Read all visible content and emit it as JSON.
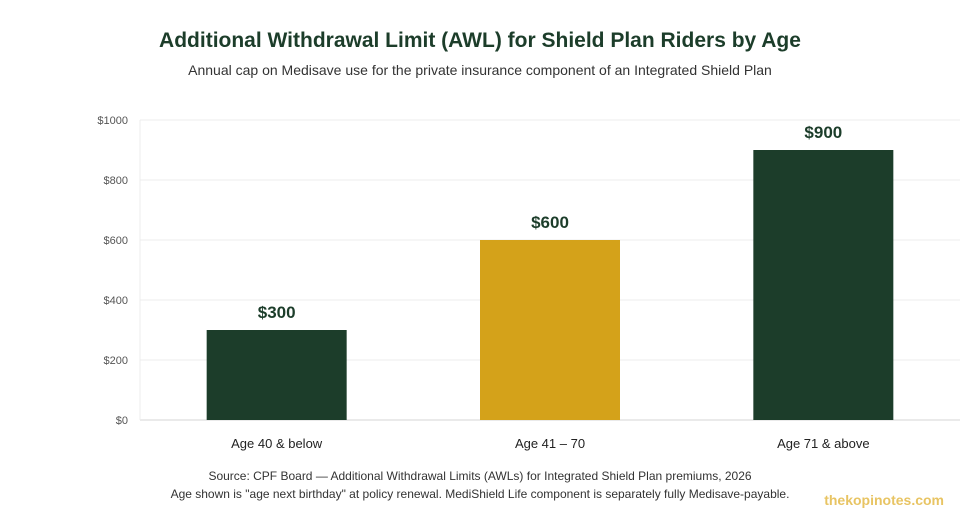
{
  "header": {
    "title": "Additional Withdrawal Limit (AWL) for Shield Plan Riders by Age",
    "subtitle": "Annual cap on Medisave use for the private insurance component of an Integrated Shield Plan"
  },
  "chart_data": {
    "type": "bar",
    "title": "Additional Withdrawal Limit (AWL) for Shield Plan Riders by Age",
    "subtitle": "Annual cap on Medisave use for the private insurance component of an Integrated Shield Plan",
    "xlabel": "",
    "ylabel": "",
    "categories": [
      "Age 40 & below",
      "Age 41 – 70",
      "Age 71 & above"
    ],
    "values": [
      300,
      600,
      900
    ],
    "value_labels": [
      "$300",
      "$600",
      "$900"
    ],
    "bar_colors": [
      "#1c3d2a",
      "#d4a21a",
      "#1c3d2a"
    ],
    "ylim": [
      0,
      1000
    ],
    "yticks": [
      0,
      200,
      400,
      600,
      800,
      1000
    ],
    "ytick_labels": [
      "$0",
      "$200",
      "$400",
      "$600",
      "$800",
      "$1000"
    ],
    "grid": true
  },
  "footer": {
    "source_line1": "Source: CPF Board — Additional Withdrawal Limits (AWLs) for Integrated Shield Plan premiums, 2026",
    "source_line2": "Age shown is \"age next birthday\" at policy renewal. MediShield Life component is separately fully Medisave-payable.",
    "brand": "thekopinotes.com"
  },
  "colors": {
    "title": "#1c3d2a",
    "accent_gold": "#d4a21a",
    "brand": "#e8c463"
  }
}
